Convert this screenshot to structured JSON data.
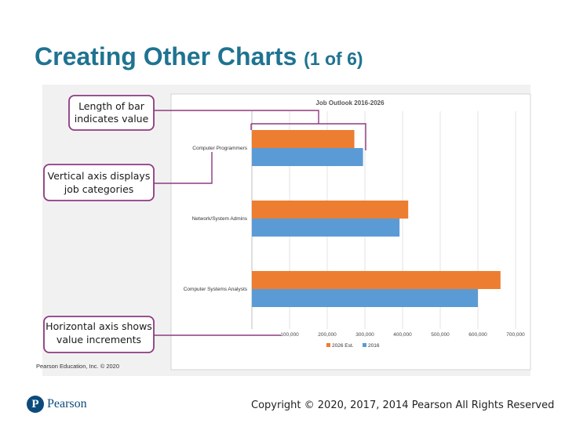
{
  "slide": {
    "title": "Creating Other Charts",
    "title_suffix": "(1 of 6)",
    "credit": "Pearson Education, Inc. © 2020",
    "footer": "Copyright © 2020, 2017, 2014 Pearson All Rights Reserved",
    "logo_text": "Pearson",
    "logo_mark": "P"
  },
  "callouts": [
    {
      "line1": "Length of bar",
      "line2": "indicates value"
    },
    {
      "line1": "Vertical axis displays",
      "line2": "job categories"
    },
    {
      "line1": "Horizontal axis shows",
      "line2": "value increments"
    }
  ],
  "colors": {
    "title": "#1f7391",
    "series_2026": "#ed7d31",
    "series_2016": "#5b9bd5",
    "callout_border": "#8e3a80",
    "logo": "#0b4a7c"
  },
  "chart_data": {
    "type": "bar",
    "orientation": "horizontal",
    "title": "Job Outlook 2016-2026",
    "categories": [
      "Computer Programmers",
      "Network/System Admins",
      "Computer Systems Analysts"
    ],
    "series": [
      {
        "name": "2026 Est.",
        "values": [
          272000,
          415000,
          660000
        ]
      },
      {
        "name": "2016",
        "values": [
          295000,
          392000,
          600000
        ]
      }
    ],
    "x_ticks": [
      "100,000",
      "200,000",
      "300,000",
      "400,000",
      "500,000",
      "600,000",
      "700,000"
    ],
    "xlim": [
      0,
      700000
    ],
    "grid": true,
    "legend": "bottom"
  }
}
